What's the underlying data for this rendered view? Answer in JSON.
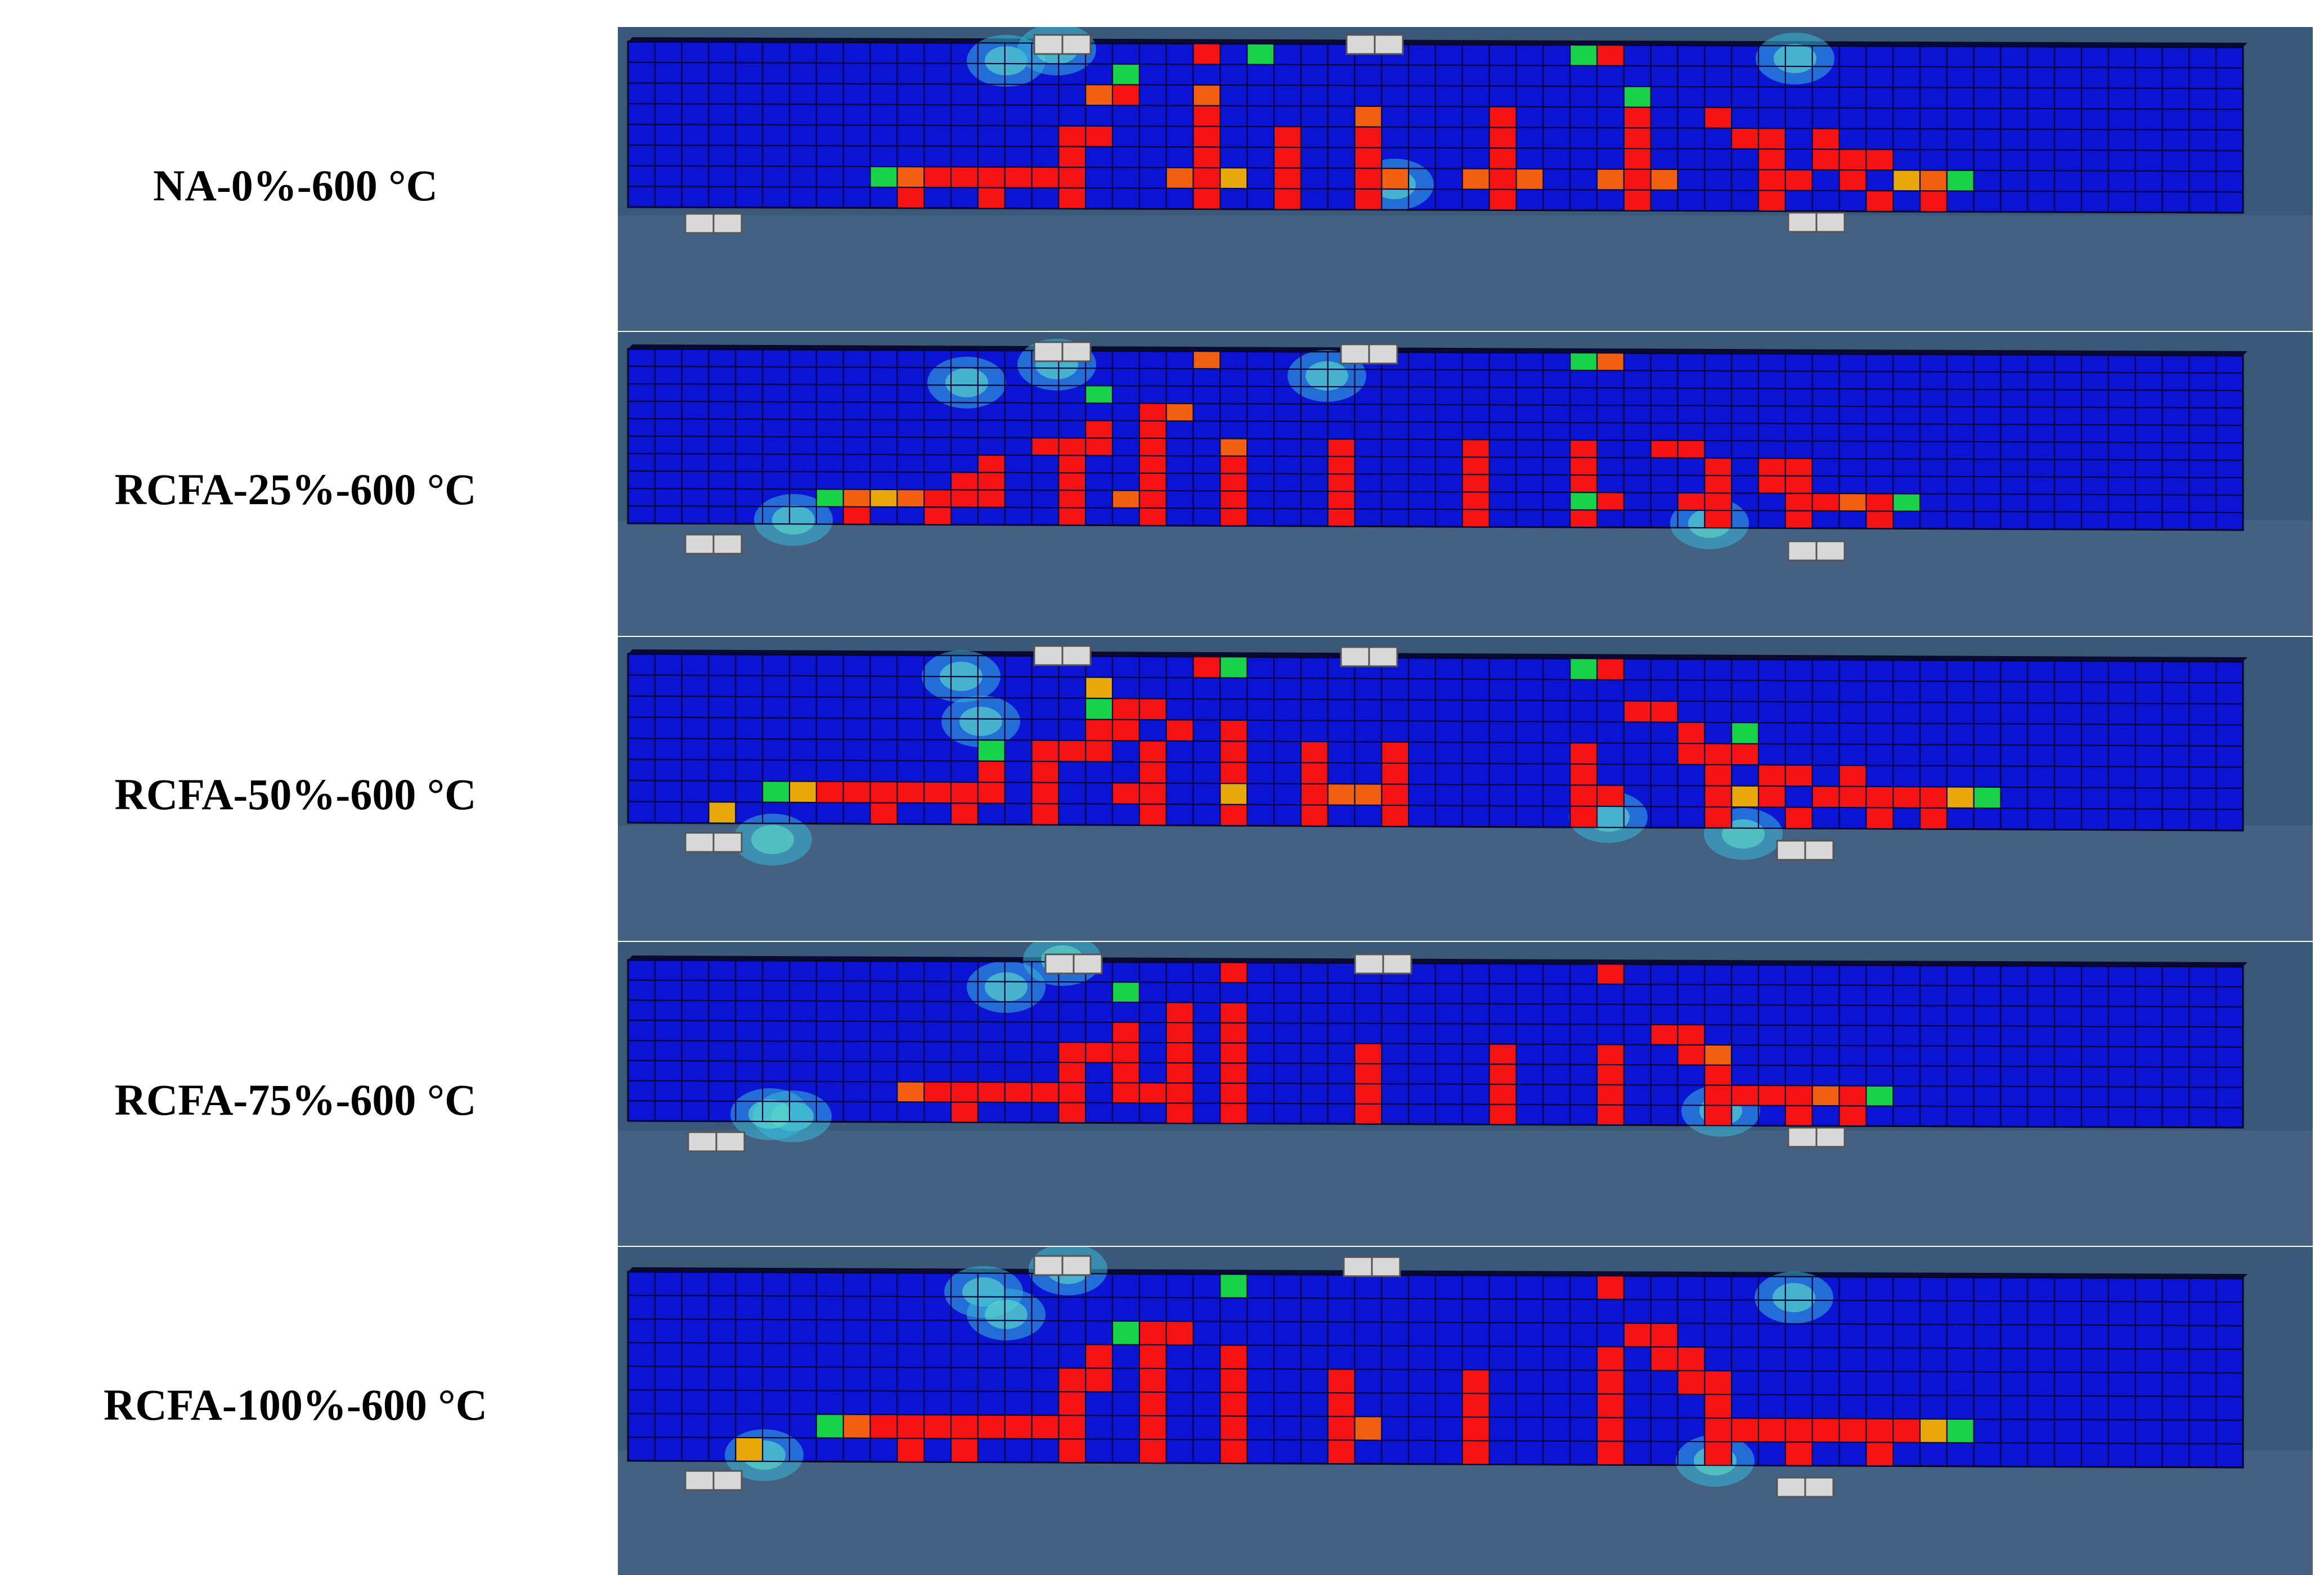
{
  "figure": {
    "panels": [
      {
        "label": "NA-0%-600 °C"
      },
      {
        "label": "RCFA-25%-600 °C"
      },
      {
        "label": "RCFA-50%-600 °C"
      },
      {
        "label": "RCFA-75%-600 °C"
      },
      {
        "label": "RCFA-100%-600 °C"
      }
    ],
    "colors": {
      "intact": "#0a14d2",
      "crack": "#f51212",
      "crack_orange": "#f06010",
      "crack_amber": "#e8a80c",
      "transition_green": "#18d24a",
      "transition_cyan": "#38b8d8",
      "mesh_line": "#05053a",
      "support": "#d8d8d8",
      "background": "#3a5878"
    }
  }
}
